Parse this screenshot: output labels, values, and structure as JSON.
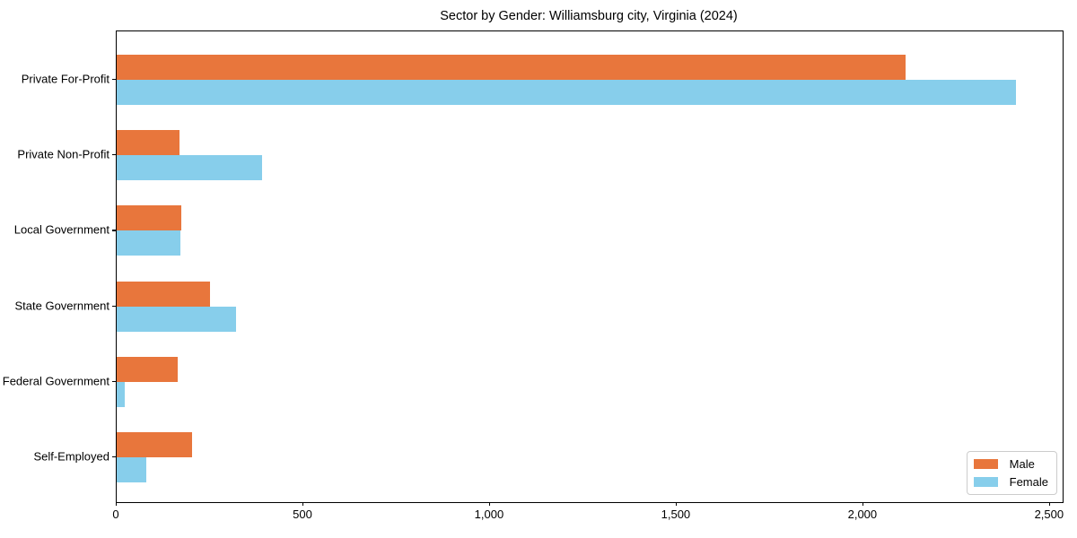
{
  "chart_data": {
    "type": "bar",
    "orientation": "horizontal",
    "title": "Sector by Gender: Williamsburg city, Virginia (2024)",
    "categories": [
      "Private For-Profit",
      "Private Non-Profit",
      "Local Government",
      "State Government",
      "Federal Government",
      "Self-Employed"
    ],
    "series": [
      {
        "name": "Male",
        "color": "#E8763C",
        "values": [
          2114,
          168,
          172,
          249,
          163,
          203
        ]
      },
      {
        "name": "Female",
        "color": "#87CEEB",
        "values": [
          2409,
          389,
          171,
          319,
          22,
          79
        ]
      }
    ],
    "xlabel": "",
    "ylabel": "",
    "xlim": [
      0,
      2534
    ],
    "xticks": [
      0,
      500,
      1000,
      1500,
      2000,
      2500
    ],
    "xtick_labels": [
      "0",
      "500",
      "1,000",
      "1,500",
      "2,000",
      "2,500"
    ],
    "legend_position": "lower right",
    "grid": false,
    "colors": {
      "spine": "#000000",
      "legend_border": "#cccccc",
      "background": "#ffffff"
    }
  }
}
